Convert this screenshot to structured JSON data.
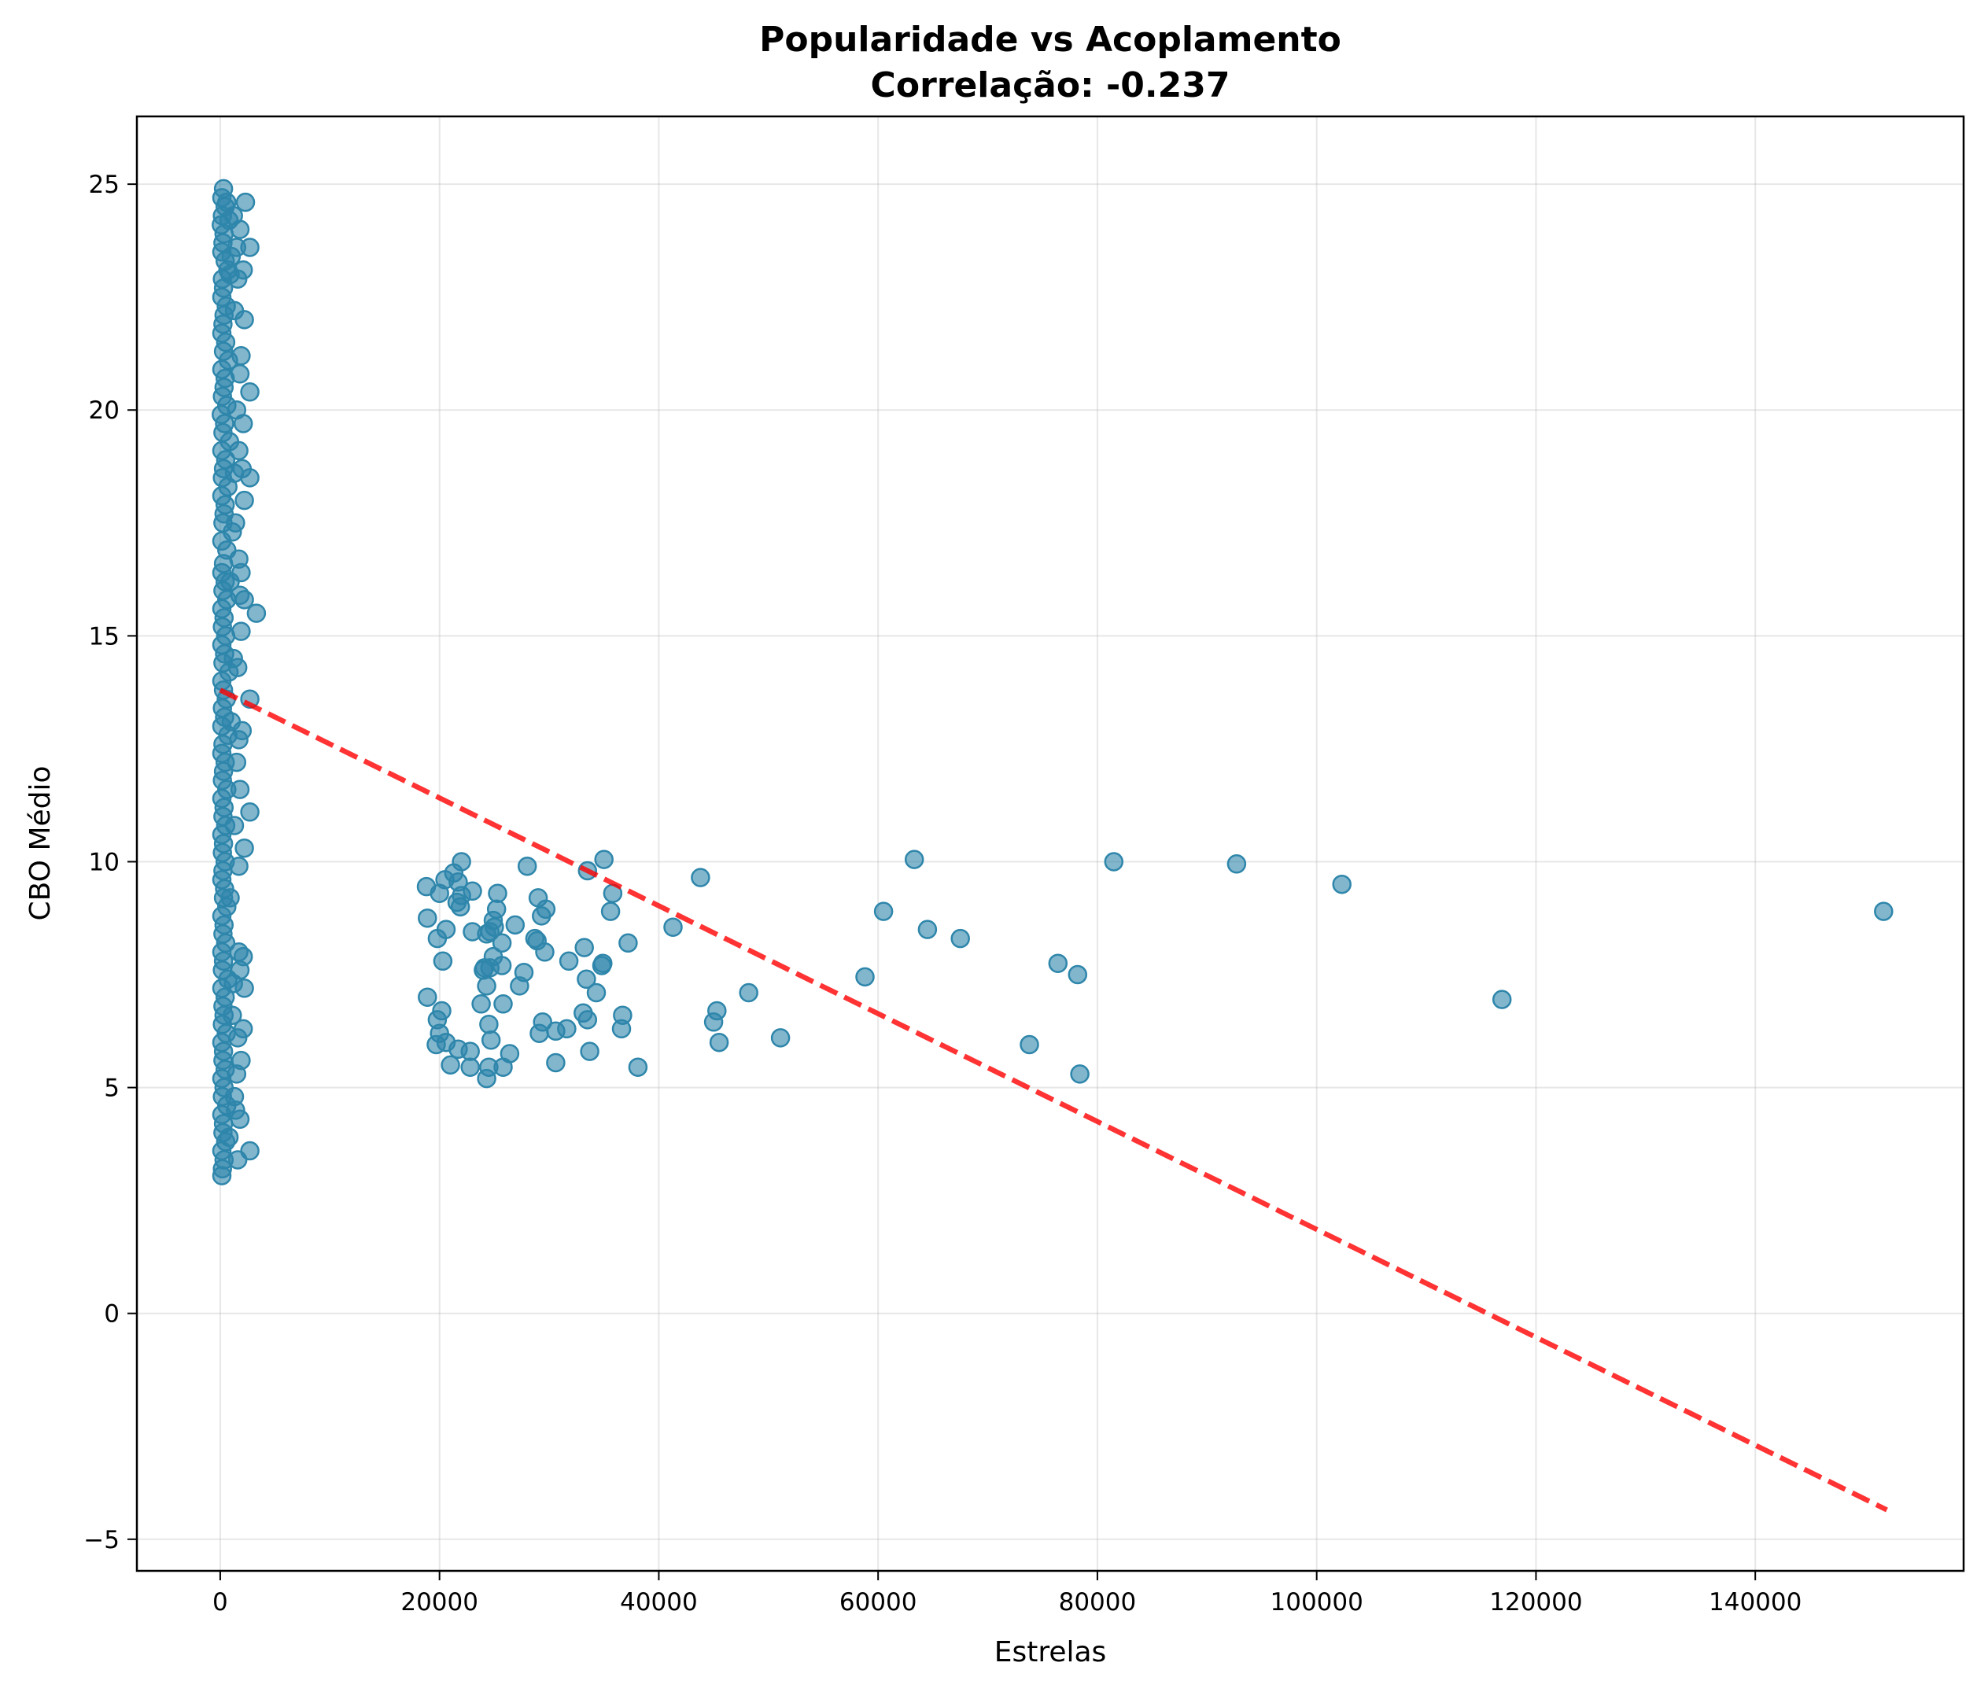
{
  "chart_data": {
    "type": "scatter",
    "title": "Popularidade vs Acoplamento",
    "subtitle": "Correlação: -0.237",
    "xlabel": "Estrelas",
    "ylabel": "CBO Médio",
    "xlim": [
      -7600,
      159000
    ],
    "ylim": [
      -5.7,
      26.5
    ],
    "xticks": [
      0,
      20000,
      40000,
      60000,
      80000,
      100000,
      120000,
      140000
    ],
    "xtick_labels": [
      "0",
      "20000",
      "40000",
      "60000",
      "80000",
      "100000",
      "120000",
      "140000"
    ],
    "yticks": [
      -5,
      0,
      5,
      10,
      15,
      20,
      25
    ],
    "ytick_labels": [
      "−5",
      "0",
      "5",
      "10",
      "15",
      "20",
      "25"
    ],
    "grid": true,
    "point_color": "#2E86AB",
    "trend_color": "#ff0000",
    "trendline": {
      "x": [
        0,
        152000
      ],
      "y": [
        13.8,
        -4.35
      ],
      "style": "dashed"
    },
    "points": [
      [
        300,
        24.9
      ],
      [
        150,
        24.7
      ],
      [
        450,
        24.5
      ],
      [
        200,
        24.3
      ],
      [
        600,
        24.6
      ],
      [
        100,
        24.1
      ],
      [
        350,
        23.9
      ],
      [
        250,
        23.7
      ],
      [
        800,
        24.2
      ],
      [
        150,
        23.5
      ],
      [
        450,
        23.3
      ],
      [
        700,
        23.1
      ],
      [
        200,
        22.9
      ],
      [
        1000,
        23.4
      ],
      [
        300,
        22.7
      ],
      [
        150,
        22.5
      ],
      [
        550,
        22.3
      ],
      [
        350,
        22.1
      ],
      [
        1300,
        22.2
      ],
      [
        900,
        23.0
      ],
      [
        2300,
        24.6
      ],
      [
        2700,
        23.6
      ],
      [
        2100,
        23.1
      ],
      [
        2200,
        22.0
      ],
      [
        1500,
        23.6
      ],
      [
        1800,
        24.0
      ],
      [
        1200,
        24.3
      ],
      [
        1600,
        22.9
      ],
      [
        250,
        21.9
      ],
      [
        150,
        21.7
      ],
      [
        500,
        21.5
      ],
      [
        300,
        21.3
      ],
      [
        750,
        21.1
      ],
      [
        150,
        20.9
      ],
      [
        450,
        20.7
      ],
      [
        350,
        20.5
      ],
      [
        200,
        20.3
      ],
      [
        600,
        20.1
      ],
      [
        100,
        19.9
      ],
      [
        400,
        19.7
      ],
      [
        250,
        19.5
      ],
      [
        850,
        19.3
      ],
      [
        150,
        19.1
      ],
      [
        500,
        18.9
      ],
      [
        300,
        18.7
      ],
      [
        200,
        18.5
      ],
      [
        700,
        18.3
      ],
      [
        150,
        18.1
      ],
      [
        450,
        17.9
      ],
      [
        350,
        17.7
      ],
      [
        250,
        17.5
      ],
      [
        1100,
        17.3
      ],
      [
        150,
        17.1
      ],
      [
        600,
        16.9
      ],
      [
        1900,
        21.2
      ],
      [
        2700,
        20.4
      ],
      [
        1800,
        20.8
      ],
      [
        2100,
        19.7
      ],
      [
        1700,
        19.1
      ],
      [
        2000,
        18.7
      ],
      [
        2700,
        18.5
      ],
      [
        2200,
        18.0
      ],
      [
        1500,
        20.0
      ],
      [
        1300,
        18.6
      ],
      [
        1700,
        16.7
      ],
      [
        1900,
        16.4
      ],
      [
        1400,
        17.5
      ],
      [
        900,
        16.2
      ],
      [
        300,
        16.6
      ],
      [
        150,
        16.4
      ],
      [
        450,
        16.2
      ],
      [
        250,
        16.0
      ],
      [
        600,
        15.8
      ],
      [
        150,
        15.6
      ],
      [
        350,
        15.4
      ],
      [
        200,
        15.2
      ],
      [
        500,
        15.0
      ],
      [
        150,
        14.8
      ],
      [
        400,
        14.6
      ],
      [
        250,
        14.4
      ],
      [
        800,
        14.2
      ],
      [
        150,
        14.0
      ],
      [
        300,
        13.8
      ],
      [
        550,
        13.6
      ],
      [
        200,
        13.4
      ],
      [
        400,
        13.2
      ],
      [
        150,
        13.0
      ],
      [
        700,
        12.8
      ],
      [
        250,
        12.6
      ],
      [
        150,
        12.4
      ],
      [
        450,
        12.2
      ],
      [
        300,
        12.0
      ],
      [
        200,
        11.8
      ],
      [
        600,
        11.6
      ],
      [
        150,
        11.4
      ],
      [
        350,
        11.2
      ],
      [
        250,
        11.0
      ],
      [
        500,
        10.8
      ],
      [
        150,
        10.6
      ],
      [
        300,
        10.4
      ],
      [
        200,
        10.2
      ],
      [
        450,
        10.0
      ],
      [
        1800,
        15.9
      ],
      [
        3300,
        15.5
      ],
      [
        2200,
        15.8
      ],
      [
        1900,
        15.1
      ],
      [
        1600,
        14.3
      ],
      [
        2700,
        13.6
      ],
      [
        2000,
        12.9
      ],
      [
        1700,
        12.7
      ],
      [
        1500,
        12.2
      ],
      [
        1800,
        11.6
      ],
      [
        2700,
        11.1
      ],
      [
        2200,
        10.3
      ],
      [
        1700,
        9.9
      ],
      [
        1200,
        14.5
      ],
      [
        1000,
        13.1
      ],
      [
        1300,
        10.8
      ],
      [
        250,
        9.8
      ],
      [
        150,
        9.6
      ],
      [
        400,
        9.4
      ],
      [
        300,
        9.2
      ],
      [
        600,
        9.0
      ],
      [
        150,
        8.8
      ],
      [
        350,
        8.6
      ],
      [
        250,
        8.4
      ],
      [
        500,
        8.2
      ],
      [
        150,
        8.0
      ],
      [
        300,
        7.8
      ],
      [
        200,
        7.6
      ],
      [
        700,
        7.4
      ],
      [
        150,
        7.2
      ],
      [
        450,
        7.0
      ],
      [
        250,
        6.8
      ],
      [
        350,
        6.6
      ],
      [
        200,
        6.4
      ],
      [
        550,
        6.2
      ],
      [
        150,
        6.0
      ],
      [
        300,
        5.8
      ],
      [
        250,
        5.6
      ],
      [
        450,
        5.4
      ],
      [
        150,
        5.2
      ],
      [
        350,
        5.0
      ],
      [
        200,
        4.8
      ],
      [
        600,
        4.6
      ],
      [
        150,
        4.4
      ],
      [
        300,
        4.2
      ],
      [
        250,
        4.0
      ],
      [
        500,
        3.8
      ],
      [
        150,
        3.6
      ],
      [
        350,
        3.4
      ],
      [
        200,
        3.2
      ],
      [
        150,
        3.05
      ],
      [
        1700,
        8.0
      ],
      [
        2100,
        7.9
      ],
      [
        1800,
        7.6
      ],
      [
        2200,
        7.2
      ],
      [
        1600,
        6.1
      ],
      [
        2100,
        6.3
      ],
      [
        1900,
        5.6
      ],
      [
        1500,
        5.3
      ],
      [
        2700,
        3.6
      ],
      [
        1800,
        4.3
      ],
      [
        1600,
        3.4
      ],
      [
        1300,
        4.8
      ],
      [
        900,
        9.2
      ],
      [
        1100,
        6.6
      ],
      [
        800,
        3.9
      ],
      [
        1200,
        7.3
      ],
      [
        1400,
        4.5
      ],
      [
        22000,
        10.0
      ],
      [
        20500,
        9.6
      ],
      [
        21300,
        9.75
      ],
      [
        21700,
        9.55
      ],
      [
        18800,
        9.45
      ],
      [
        20000,
        9.3
      ],
      [
        22000,
        9.25
      ],
      [
        23000,
        9.35
      ],
      [
        25300,
        9.3
      ],
      [
        21600,
        9.1
      ],
      [
        21900,
        9.0
      ],
      [
        25200,
        8.95
      ],
      [
        18900,
        8.75
      ],
      [
        24900,
        8.7
      ],
      [
        26900,
        8.6
      ],
      [
        25000,
        8.55
      ],
      [
        20600,
        8.5
      ],
      [
        23000,
        8.45
      ],
      [
        24600,
        8.45
      ],
      [
        24300,
        8.4
      ],
      [
        19800,
        8.3
      ],
      [
        25700,
        8.2
      ],
      [
        24900,
        7.9
      ],
      [
        20300,
        7.8
      ],
      [
        24100,
        7.65
      ],
      [
        24600,
        7.65
      ],
      [
        25700,
        7.7
      ],
      [
        27700,
        7.55
      ],
      [
        24000,
        7.6
      ],
      [
        27300,
        7.25
      ],
      [
        24300,
        7.25
      ],
      [
        18900,
        7.0
      ],
      [
        23800,
        6.85
      ],
      [
        25800,
        6.85
      ],
      [
        20200,
        6.7
      ],
      [
        19800,
        6.5
      ],
      [
        24500,
        6.4
      ],
      [
        20000,
        6.2
      ],
      [
        20600,
        6.0
      ],
      [
        24700,
        6.05
      ],
      [
        19700,
        5.95
      ],
      [
        21700,
        5.85
      ],
      [
        22800,
        5.8
      ],
      [
        26400,
        5.75
      ],
      [
        21000,
        5.5
      ],
      [
        22800,
        5.45
      ],
      [
        24500,
        5.45
      ],
      [
        25800,
        5.45
      ],
      [
        24300,
        5.2
      ],
      [
        28000,
        9.9
      ],
      [
        29000,
        9.2
      ],
      [
        29700,
        8.95
      ],
      [
        29300,
        8.8
      ],
      [
        28700,
        8.3
      ],
      [
        28900,
        8.25
      ],
      [
        29600,
        8.0
      ],
      [
        31800,
        7.8
      ],
      [
        33200,
        8.1
      ],
      [
        37200,
        8.2
      ],
      [
        35600,
        8.9
      ],
      [
        35800,
        9.3
      ],
      [
        33500,
        9.8
      ],
      [
        35000,
        10.05
      ],
      [
        34900,
        7.75
      ],
      [
        34800,
        7.7
      ],
      [
        33400,
        7.4
      ],
      [
        34300,
        7.1
      ],
      [
        33100,
        6.65
      ],
      [
        33500,
        6.5
      ],
      [
        36700,
        6.6
      ],
      [
        36600,
        6.3
      ],
      [
        29400,
        6.45
      ],
      [
        29100,
        6.2
      ],
      [
        30600,
        6.25
      ],
      [
        31600,
        6.3
      ],
      [
        33700,
        5.8
      ],
      [
        30600,
        5.55
      ],
      [
        38100,
        5.45
      ],
      [
        43800,
        9.65
      ],
      [
        41300,
        8.55
      ],
      [
        48200,
        7.1
      ],
      [
        45300,
        6.7
      ],
      [
        45000,
        6.45
      ],
      [
        45500,
        6.0
      ],
      [
        51100,
        6.1
      ],
      [
        60500,
        8.9
      ],
      [
        63300,
        10.05
      ],
      [
        64500,
        8.5
      ],
      [
        67500,
        8.3
      ],
      [
        58800,
        7.45
      ],
      [
        73800,
        5.95
      ],
      [
        76400,
        7.75
      ],
      [
        78200,
        7.5
      ],
      [
        78400,
        5.3
      ],
      [
        81500,
        10.0
      ],
      [
        92700,
        9.95
      ],
      [
        102300,
        9.5
      ],
      [
        116900,
        6.95
      ],
      [
        151700,
        8.9
      ]
    ]
  }
}
